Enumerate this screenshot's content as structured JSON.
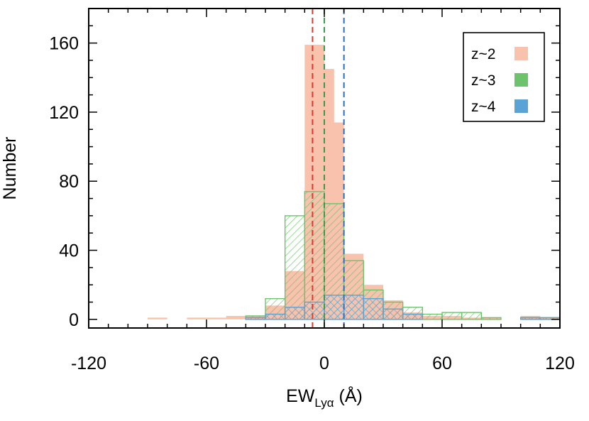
{
  "chart_data": {
    "type": "histogram",
    "xlabel": {
      "main": "EW",
      "sub": "Lyα",
      "unit": " (Å)"
    },
    "ylabel": "Number",
    "xlim": [
      -120,
      120
    ],
    "ylim": [
      -5,
      180
    ],
    "x_ticks": [
      -120,
      -60,
      0,
      60,
      120
    ],
    "y_ticks": [
      0,
      40,
      80,
      120,
      160
    ],
    "bin_width": 10,
    "legend_position": "top-right",
    "series": [
      {
        "name": "z~2",
        "color": "#f9c2ad",
        "style": "filled",
        "bins": [
          {
            "x0": -90,
            "count": 1
          },
          {
            "x0": -70,
            "count": 1
          },
          {
            "x0": -60,
            "count": 1
          },
          {
            "x0": -50,
            "count": 2
          },
          {
            "x0": -40,
            "count": 2
          },
          {
            "x0": -30,
            "count": 8
          },
          {
            "x0": -20,
            "count": 28
          },
          {
            "x0": -10,
            "count": 159
          },
          {
            "x0": -5,
            "count": 145
          },
          {
            "x0": 0,
            "count": 114
          },
          {
            "x0": 10,
            "count": 38
          },
          {
            "x0": 20,
            "count": 20
          },
          {
            "x0": 30,
            "count": 11
          },
          {
            "x0": 40,
            "count": 4
          },
          {
            "x0": 50,
            "count": 2
          },
          {
            "x0": 60,
            "count": 2
          },
          {
            "x0": 70,
            "count": 1
          },
          {
            "x0": 80,
            "count": 1
          },
          {
            "x0": 100,
            "count": 2
          },
          {
            "x0": 110,
            "count": 1
          }
        ]
      },
      {
        "name": "z~3",
        "color": "#6cc36c",
        "style": "hatched",
        "bins": [
          {
            "x0": -40,
            "count": 2
          },
          {
            "x0": -30,
            "count": 12
          },
          {
            "x0": -20,
            "count": 60
          },
          {
            "x0": -10,
            "count": 74
          },
          {
            "x0": 0,
            "count": 67
          },
          {
            "x0": 10,
            "count": 34
          },
          {
            "x0": 20,
            "count": 17
          },
          {
            "x0": 30,
            "count": 10
          },
          {
            "x0": 40,
            "count": 7
          },
          {
            "x0": 50,
            "count": 3
          },
          {
            "x0": 60,
            "count": 4
          },
          {
            "x0": 70,
            "count": 4
          },
          {
            "x0": 80,
            "count": 1
          },
          {
            "x0": 100,
            "count": 1
          },
          {
            "x0": 110,
            "count": 1
          }
        ]
      },
      {
        "name": "z~4",
        "color": "#5aa3d6",
        "style": "hatched",
        "bins": [
          {
            "x0": -40,
            "count": 1
          },
          {
            "x0": -30,
            "count": 3
          },
          {
            "x0": -20,
            "count": 7
          },
          {
            "x0": -10,
            "count": 10
          },
          {
            "x0": 0,
            "count": 14
          },
          {
            "x0": 10,
            "count": 14
          },
          {
            "x0": 20,
            "count": 12
          },
          {
            "x0": 30,
            "count": 6
          },
          {
            "x0": 40,
            "count": 3
          },
          {
            "x0": 100,
            "count": 1
          },
          {
            "x0": 110,
            "count": 1
          }
        ]
      }
    ],
    "median_lines": [
      {
        "series": "z~2",
        "x": -6,
        "color": "#e0392b"
      },
      {
        "series": "z~3",
        "x": 0,
        "color": "#3a9a4a"
      },
      {
        "series": "z~4",
        "x": 10,
        "color": "#2a6fbf"
      }
    ]
  }
}
